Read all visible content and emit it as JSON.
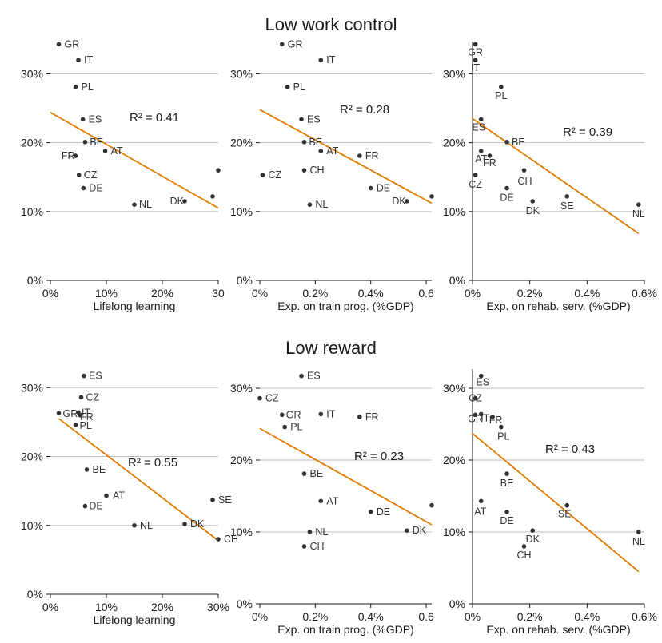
{
  "colors": {
    "point": "#333333",
    "fit": "#E07B00",
    "grid": "#bdbdbd",
    "axis": "#1a1a1a"
  },
  "chart_data": [
    {
      "type": "scatter",
      "row": 0,
      "col": 0,
      "row_title": "Low work control",
      "xlabel": "Lifelong learning",
      "xlim": [
        0,
        30
      ],
      "ylim": [
        0,
        34
      ],
      "xticks": [
        0,
        10,
        20,
        30
      ],
      "xtick_labels": [
        "0%",
        "10%",
        "20%",
        "30"
      ],
      "yticks": [
        0,
        10,
        20,
        30
      ],
      "ytick_labels": [
        "0%",
        "10%",
        "20%",
        "30%"
      ],
      "show_yaxis_line": false,
      "r2_label": "R² = 0.41",
      "fit": {
        "x": [
          0,
          30
        ],
        "y": [
          24.4,
          10.5
        ]
      },
      "points": [
        {
          "label": "GR",
          "x": 1.5,
          "y": 34.3
        },
        {
          "label": "IT",
          "x": 5.0,
          "y": 32.0
        },
        {
          "label": "PL",
          "x": 4.5,
          "y": 28.1
        },
        {
          "label": "ES",
          "x": 5.8,
          "y": 23.4
        },
        {
          "label": "BE",
          "x": 6.2,
          "y": 20.1
        },
        {
          "label": "AT",
          "x": 9.8,
          "y": 18.8
        },
        {
          "label": "FR",
          "x": 4.5,
          "y": 18.1
        },
        {
          "label": "CZ",
          "x": 5.1,
          "y": 15.3
        },
        {
          "label": "DE",
          "x": 5.9,
          "y": 13.4
        },
        {
          "label": "NL",
          "x": 15.0,
          "y": 11.0
        },
        {
          "label": "DK",
          "x": 24.0,
          "y": 11.5
        },
        {
          "label": "",
          "x": 29.0,
          "y": 12.2
        },
        {
          "label": "",
          "x": 30.0,
          "y": 16.0
        }
      ]
    },
    {
      "type": "scatter",
      "row": 0,
      "col": 1,
      "xlabel": "Exp. on train prog. (%GDP)",
      "xlim": [
        0,
        0.62
      ],
      "ylim": [
        0,
        34
      ],
      "xticks": [
        0,
        0.2,
        0.4,
        0.6
      ],
      "xtick_labels": [
        "0%",
        "0.2%",
        "0.4%",
        "0.6"
      ],
      "yticks": [
        0,
        10,
        20,
        30
      ],
      "ytick_labels": [
        "0%",
        "10%",
        "20%",
        "30%"
      ],
      "show_yaxis_line": false,
      "r2_label": "R² = 0.28",
      "fit": {
        "x": [
          0,
          0.62
        ],
        "y": [
          24.8,
          11.2
        ]
      },
      "points": [
        {
          "label": "GR",
          "x": 0.08,
          "y": 34.3
        },
        {
          "label": "IT",
          "x": 0.22,
          "y": 32.0
        },
        {
          "label": "PL",
          "x": 0.1,
          "y": 28.1
        },
        {
          "label": "ES",
          "x": 0.15,
          "y": 23.4
        },
        {
          "label": "BE",
          "x": 0.16,
          "y": 20.1
        },
        {
          "label": "AT",
          "x": 0.22,
          "y": 18.8
        },
        {
          "label": "FR",
          "x": 0.36,
          "y": 18.1
        },
        {
          "label": "CZ",
          "x": 0.01,
          "y": 15.3
        },
        {
          "label": "CH",
          "x": 0.16,
          "y": 16.0
        },
        {
          "label": "DE",
          "x": 0.4,
          "y": 13.4
        },
        {
          "label": "NL",
          "x": 0.18,
          "y": 11.0
        },
        {
          "label": "DK",
          "x": 0.53,
          "y": 11.5
        },
        {
          "label": "",
          "x": 0.62,
          "y": 12.2
        }
      ]
    },
    {
      "type": "scatter",
      "row": 0,
      "col": 2,
      "xlabel": "Exp. on rehab. serv. (%GDP)",
      "xlim": [
        0,
        0.6
      ],
      "ylim": [
        0,
        34
      ],
      "xticks": [
        0,
        0.2,
        0.4,
        0.6
      ],
      "xtick_labels": [
        "0%",
        "0.2%",
        "0.4%",
        "0.6%"
      ],
      "yticks": [
        0,
        10,
        20,
        30
      ],
      "ytick_labels": [
        "0%",
        "10%",
        "20%",
        "30%"
      ],
      "show_yaxis_line": true,
      "r2_label": "R² = 0.39",
      "fit": {
        "x": [
          0,
          0.58
        ],
        "y": [
          23.5,
          6.8
        ]
      },
      "points": [
        {
          "label": "GR",
          "x": 0.01,
          "y": 34.3
        },
        {
          "label": "IT",
          "x": 0.01,
          "y": 32.0
        },
        {
          "label": "PL",
          "x": 0.1,
          "y": 28.1
        },
        {
          "label": "ES",
          "x": 0.03,
          "y": 23.4
        },
        {
          "label": "BE",
          "x": 0.12,
          "y": 20.1
        },
        {
          "label": "AT",
          "x": 0.03,
          "y": 18.8
        },
        {
          "label": "FR",
          "x": 0.06,
          "y": 18.1
        },
        {
          "label": "CZ",
          "x": 0.01,
          "y": 15.3
        },
        {
          "label": "CH",
          "x": 0.18,
          "y": 16.0
        },
        {
          "label": "DE",
          "x": 0.12,
          "y": 13.4
        },
        {
          "label": "DK",
          "x": 0.21,
          "y": 11.5
        },
        {
          "label": "SE",
          "x": 0.33,
          "y": 12.2
        },
        {
          "label": "NL",
          "x": 0.58,
          "y": 11.0
        }
      ]
    },
    {
      "type": "scatter",
      "row": 1,
      "col": 0,
      "row_title": "Low reward",
      "xlabel": "Lifelong learning",
      "xlim": [
        0,
        30
      ],
      "ylim": [
        0,
        32
      ],
      "xticks": [
        0,
        10,
        20,
        30
      ],
      "xtick_labels": [
        "0%",
        "10%",
        "20%",
        "30%"
      ],
      "yticks": [
        0,
        10,
        20,
        30
      ],
      "ytick_labels": [
        "0%",
        "10%",
        "20%",
        "30%"
      ],
      "show_yaxis_line": false,
      "r2_label": "R² = 0.55",
      "fit": {
        "x": [
          1.5,
          30
        ],
        "y": [
          25.5,
          7.8
        ]
      },
      "points": [
        {
          "label": "ES",
          "x": 6.0,
          "y": 31.7
        },
        {
          "label": "CZ",
          "x": 5.5,
          "y": 28.6
        },
        {
          "label": "GR",
          "x": 1.5,
          "y": 26.3
        },
        {
          "label": "IT",
          "x": 5.0,
          "y": 26.4
        },
        {
          "label": "FR",
          "x": 5.3,
          "y": 26.0
        },
        {
          "label": "PL",
          "x": 4.5,
          "y": 24.6
        },
        {
          "label": "BE",
          "x": 6.5,
          "y": 18.1
        },
        {
          "label": "AT",
          "x": 10.0,
          "y": 14.3
        },
        {
          "label": "DE",
          "x": 6.2,
          "y": 12.8
        },
        {
          "label": "NL",
          "x": 15.0,
          "y": 10.0
        },
        {
          "label": "DK",
          "x": 24.0,
          "y": 10.2
        },
        {
          "label": "SE",
          "x": 29.0,
          "y": 13.7
        },
        {
          "label": "CH",
          "x": 30.0,
          "y": 8.0
        }
      ]
    },
    {
      "type": "scatter",
      "row": 1,
      "col": 1,
      "xlabel": "Exp. on train prog. (%GDP)",
      "xlim": [
        0,
        0.62
      ],
      "ylim": [
        0,
        32
      ],
      "xticks": [
        0,
        0.2,
        0.4,
        0.6
      ],
      "xtick_labels": [
        "0%",
        "0.2%",
        "0.4%",
        "0.6"
      ],
      "yticks": [
        0,
        10,
        20,
        30
      ],
      "ytick_labels": [
        "0%",
        "10%",
        "20%",
        "30%"
      ],
      "show_yaxis_line": false,
      "r2_label": "R² = 0.23",
      "fit": {
        "x": [
          0,
          0.62
        ],
        "y": [
          24.4,
          11.0
        ]
      },
      "points": [
        {
          "label": "ES",
          "x": 0.15,
          "y": 31.7
        },
        {
          "label": "CZ",
          "x": 0.0,
          "y": 28.6
        },
        {
          "label": "GR",
          "x": 0.08,
          "y": 26.3
        },
        {
          "label": "IT",
          "x": 0.22,
          "y": 26.4
        },
        {
          "label": "FR",
          "x": 0.36,
          "y": 26.0
        },
        {
          "label": "PL",
          "x": 0.09,
          "y": 24.6
        },
        {
          "label": "BE",
          "x": 0.16,
          "y": 18.1
        },
        {
          "label": "AT",
          "x": 0.22,
          "y": 14.3
        },
        {
          "label": "DE",
          "x": 0.4,
          "y": 12.8
        },
        {
          "label": "NL",
          "x": 0.18,
          "y": 10.0
        },
        {
          "label": "DK",
          "x": 0.53,
          "y": 10.2
        },
        {
          "label": "CH",
          "x": 0.16,
          "y": 8.0
        },
        {
          "label": "",
          "x": 0.62,
          "y": 13.7
        }
      ]
    },
    {
      "type": "scatter",
      "row": 1,
      "col": 2,
      "xlabel": "Exp. on rehab. serv. (%GDP)",
      "xlim": [
        0,
        0.6
      ],
      "ylim": [
        0,
        32
      ],
      "xticks": [
        0,
        0.2,
        0.4,
        0.6
      ],
      "xtick_labels": [
        "0%",
        "0.2%",
        "0.4%",
        "0.6%"
      ],
      "yticks": [
        0,
        10,
        20,
        30
      ],
      "ytick_labels": [
        "0%",
        "10%",
        "20%",
        "30%"
      ],
      "show_yaxis_line": true,
      "r2_label": "R² = 0.43",
      "fit": {
        "x": [
          0,
          0.58
        ],
        "y": [
          23.7,
          4.5
        ]
      },
      "points": [
        {
          "label": "ES",
          "x": 0.03,
          "y": 31.7
        },
        {
          "label": "CZ",
          "x": 0.01,
          "y": 28.6
        },
        {
          "label": "GR",
          "x": 0.01,
          "y": 26.3
        },
        {
          "label": "IT",
          "x": 0.03,
          "y": 26.4
        },
        {
          "label": "FR",
          "x": 0.07,
          "y": 26.0
        },
        {
          "label": "PL",
          "x": 0.1,
          "y": 24.6
        },
        {
          "label": "BE",
          "x": 0.12,
          "y": 18.1
        },
        {
          "label": "AT",
          "x": 0.03,
          "y": 14.3
        },
        {
          "label": "DE",
          "x": 0.12,
          "y": 12.8
        },
        {
          "label": "SE",
          "x": 0.33,
          "y": 13.7
        },
        {
          "label": "DK",
          "x": 0.21,
          "y": 10.2
        },
        {
          "label": "CH",
          "x": 0.18,
          "y": 8.0
        },
        {
          "label": "NL",
          "x": 0.58,
          "y": 10.0
        }
      ]
    }
  ]
}
